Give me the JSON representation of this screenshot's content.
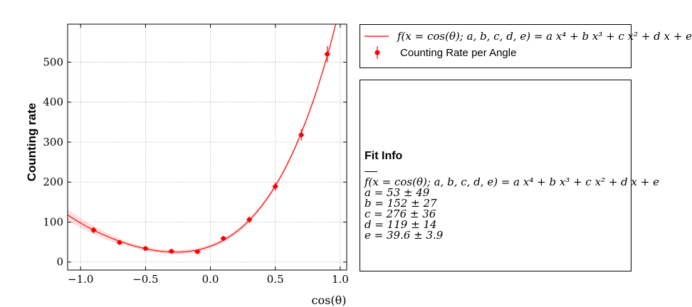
{
  "chart_data": {
    "type": "scatter",
    "xlabel": "cos(θ)",
    "ylabel": "Counting rate",
    "xlim": [
      -1.1,
      1.05
    ],
    "ylim": [
      -20,
      595
    ],
    "xticks": [
      -1.0,
      -0.5,
      0.0,
      0.5,
      1.0
    ],
    "xtick_labels": [
      "−1.0",
      "−0.5",
      "0.0",
      "0.5",
      "1.0"
    ],
    "yticks": [
      0,
      100,
      200,
      300,
      400,
      500
    ],
    "ytick_labels": [
      "0",
      "100",
      "200",
      "300",
      "400",
      "500"
    ],
    "grid": true,
    "series": [
      {
        "name": "Counting Rate per Angle",
        "kind": "points_with_errorbars",
        "color": "#ff0000",
        "x": [
          -0.9,
          -0.7,
          -0.5,
          -0.3,
          -0.1,
          0.1,
          0.3,
          0.5,
          0.7,
          0.9
        ],
        "y": [
          80,
          49,
          34,
          27,
          26,
          59,
          106,
          189,
          318,
          520
        ],
        "yerr": [
          8,
          6,
          5,
          4,
          4,
          6,
          8,
          10,
          14,
          20
        ]
      },
      {
        "name": "f(x = cos(θ); a, b, c, d, e) = a x⁴ + b x³ + c x² + d x + e",
        "kind": "fit_curve",
        "color": "#ff0000",
        "coefficients": {
          "a": 53,
          "b": 152,
          "c": 276,
          "d": 119,
          "e": 39.6
        }
      }
    ],
    "legend_position": "right-top"
  },
  "legend": {
    "fit_label": "f(x = cos(θ); a, b, c, d, e) = a x⁴ + b x³ + c x² + d x + e",
    "data_label": "Counting Rate per Angle"
  },
  "fit_info": {
    "title": "Fit Info",
    "formula": "f(x = cos(θ); a, b, c, d, e) = a x⁴ + b x³ + c x² + d x + e",
    "params": [
      "a = 53 ± 49",
      "b = 152 ± 27",
      "c = 276 ± 36",
      "d = 119 ± 14",
      "e = 39.6 ± 3.9"
    ]
  }
}
